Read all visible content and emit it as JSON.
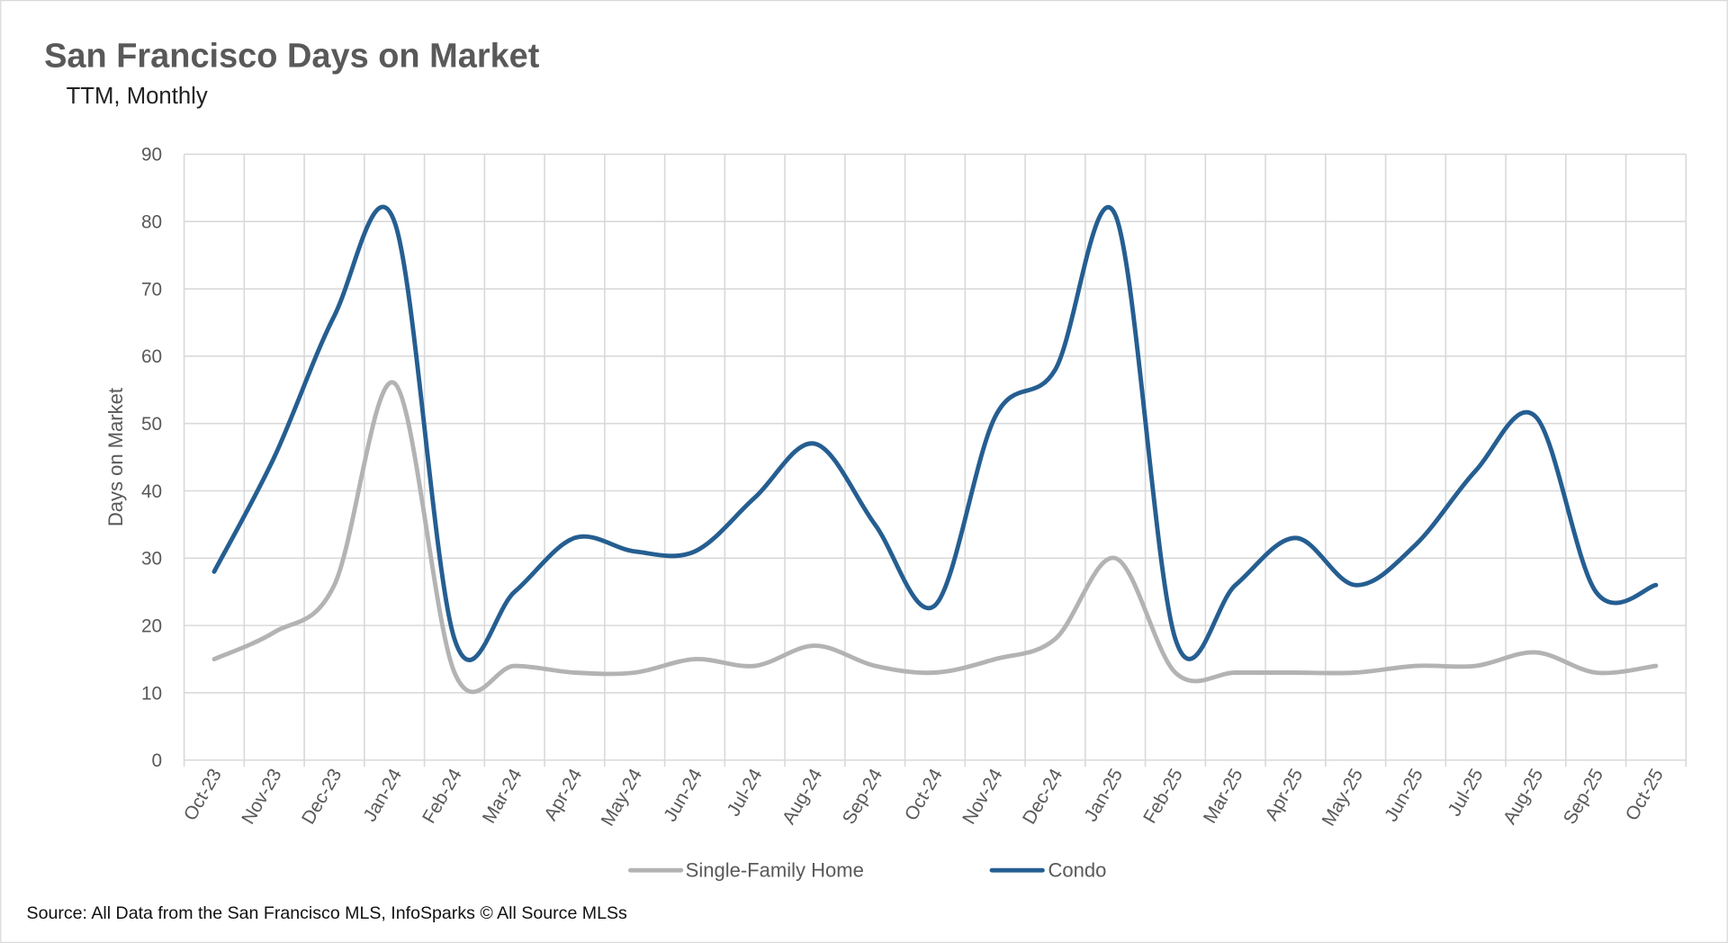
{
  "chart_data": {
    "type": "line",
    "title": "San Francisco Days on Market",
    "subtitle": "TTM, Monthly",
    "ylabel": "Days on Market",
    "xlabel": "",
    "ylim": [
      0,
      90
    ],
    "yticks": [
      0,
      10,
      20,
      30,
      40,
      50,
      60,
      70,
      80,
      90
    ],
    "grid": true,
    "smoothed": true,
    "legend_position": "bottom",
    "categories": [
      "Oct-23",
      "Nov-23",
      "Dec-23",
      "Jan-24",
      "Feb-24",
      "Mar-24",
      "Apr-24",
      "May-24",
      "Jun-24",
      "Jul-24",
      "Aug-24",
      "Sep-24",
      "Oct-24",
      "Nov-24",
      "Dec-24",
      "Jan-25",
      "Feb-25",
      "Mar-25",
      "Apr-25",
      "May-25",
      "Jun-25",
      "Jul-25",
      "Aug-25",
      "Sep-25",
      "Oct-25"
    ],
    "series": [
      {
        "name": "Single-Family Home",
        "color": "#b3b3b3",
        "values": [
          15,
          19,
          26,
          56,
          13,
          14,
          13,
          13,
          15,
          14,
          17,
          14,
          13,
          15,
          18,
          30,
          13,
          13,
          13,
          13,
          14,
          14,
          16,
          13,
          14
        ]
      },
      {
        "name": "Condo",
        "color": "#255e91",
        "values": [
          28,
          45,
          66,
          80,
          18,
          25,
          33,
          31,
          31,
          39,
          47,
          35,
          23,
          51,
          58,
          81,
          18,
          26,
          33,
          26,
          32,
          43,
          51,
          25,
          26
        ]
      }
    ],
    "source": "Source: All Data from the San Francisco MLS, InfoSparks © All Source MLSs"
  }
}
